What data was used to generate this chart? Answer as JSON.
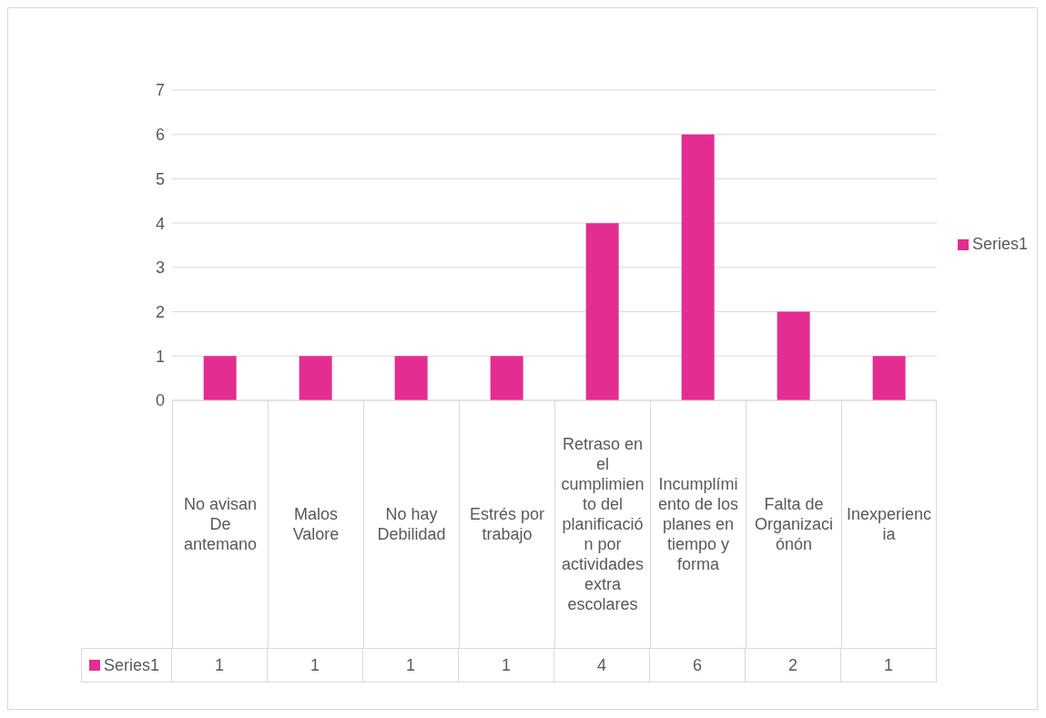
{
  "chart_data": {
    "type": "bar",
    "categories": [
      "No avisan De antemano",
      "Malos Valore",
      "No hay Debilidad",
      "Estrés por trabajo",
      "Retraso en el cumplimiento del planificación por actividades extra escolares",
      "Incumplímiento de los  planes en tiempo y forma",
      "Falta de Organizaciónón",
      "Inexperiencia"
    ],
    "series": [
      {
        "name": "Series1",
        "color": "#e32d91",
        "values": [
          1,
          1,
          1,
          1,
          4,
          6,
          2,
          1
        ]
      }
    ],
    "ylim": [
      0,
      7
    ],
    "yticks": [
      0,
      1,
      2,
      3,
      4,
      5,
      6,
      7
    ],
    "grid": "y",
    "legend": "right",
    "data_labels": true
  }
}
